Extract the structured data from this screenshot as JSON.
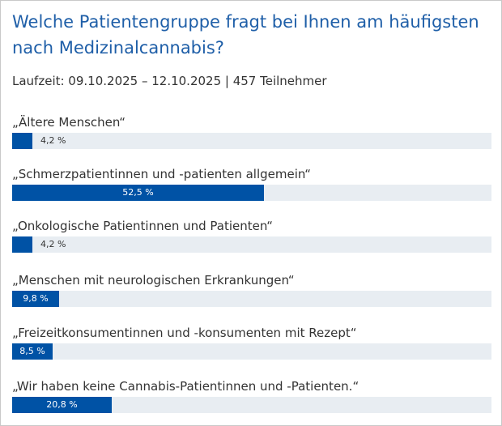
{
  "poll": {
    "title": "Welche Patientengruppe fragt bei Ihnen am häufigsten nach Medizinalcannabis?",
    "meta": "Laufzeit: 09.10.2025 – 12.10.2025 | 457 Teilnehmer",
    "colors": {
      "title": "#1f5fa8",
      "bar": "#0052a5",
      "track": "#e8edf2",
      "text": "#333333"
    },
    "options": [
      {
        "label": "„Ältere Menschen“",
        "percent": 4.2,
        "percent_label": "4,2 %"
      },
      {
        "label": "„Schmerzpatientinnen und -patienten allgemein“",
        "percent": 52.5,
        "percent_label": "52,5 %"
      },
      {
        "label": "„Onkologische Patientinnen und Patienten“",
        "percent": 4.2,
        "percent_label": "4,2 %"
      },
      {
        "label": "„Menschen mit neurologischen Erkrankungen“",
        "percent": 9.8,
        "percent_label": "9,8 %"
      },
      {
        "label": "„Freizeitkonsumentinnen und -konsumenten mit Rezept“",
        "percent": 8.5,
        "percent_label": "8,5 %"
      },
      {
        "label": "„Wir haben keine Cannabis-Patientinnen und -Patienten.“",
        "percent": 20.8,
        "percent_label": "20,8 %"
      }
    ]
  }
}
